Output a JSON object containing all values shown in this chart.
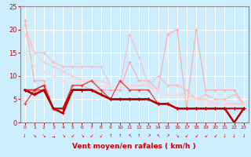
{
  "xlabel": "Vent moyen/en rafales ( km/h )",
  "xlim": [
    -0.5,
    23.5
  ],
  "ylim": [
    0,
    25
  ],
  "yticks": [
    0,
    5,
    10,
    15,
    20,
    25
  ],
  "xticks": [
    0,
    1,
    2,
    3,
    4,
    5,
    6,
    7,
    8,
    9,
    10,
    11,
    12,
    13,
    14,
    15,
    16,
    17,
    18,
    19,
    20,
    21,
    22,
    23
  ],
  "bg_color": "#cceeff",
  "grid_color": "#ffffff",
  "lines": [
    {
      "x": [
        0,
        1,
        2,
        3,
        4,
        5,
        6,
        7,
        8,
        9,
        10,
        11,
        12,
        13,
        14,
        15,
        16,
        17,
        18,
        19,
        20,
        21,
        22,
        23
      ],
      "y": [
        22,
        9,
        9,
        3,
        3,
        8,
        8,
        7,
        7,
        7,
        7,
        13,
        9,
        9,
        7,
        19,
        20,
        3,
        20,
        7,
        7,
        7,
        7,
        4
      ],
      "color": "#ffaaaa",
      "lw": 0.8,
      "marker": "+"
    },
    {
      "x": [
        0,
        1,
        2,
        3,
        4,
        5,
        6,
        7,
        8,
        9,
        10,
        11,
        12,
        13,
        14,
        15,
        16,
        17,
        18,
        19,
        20,
        21,
        22,
        23
      ],
      "y": [
        21,
        15,
        15,
        13,
        12,
        12,
        12,
        12,
        12,
        8,
        8,
        19,
        14,
        8,
        10,
        8,
        8,
        7,
        5,
        6,
        5,
        5,
        6,
        4
      ],
      "color": "#ffbbbb",
      "lw": 0.8,
      "marker": "+"
    },
    {
      "x": [
        0,
        1,
        2,
        3,
        4,
        5,
        6,
        7,
        8,
        9,
        10,
        11,
        12,
        13,
        14,
        15,
        16,
        17,
        18,
        19,
        20,
        21,
        22,
        23
      ],
      "y": [
        19,
        15,
        13,
        12,
        11,
        10,
        9,
        9,
        9,
        8,
        8,
        8,
        8,
        8,
        7,
        6,
        6,
        6,
        5,
        5,
        4,
        4,
        4,
        4
      ],
      "color": "#ffcccc",
      "lw": 1.0,
      "marker": "+"
    },
    {
      "x": [
        0,
        1,
        2,
        3,
        4,
        5,
        6,
        7,
        8,
        9,
        10,
        11,
        12,
        13,
        14,
        15,
        16,
        17,
        18,
        19,
        20,
        21,
        22,
        23
      ],
      "y": [
        15,
        12,
        11,
        10,
        9,
        9,
        9,
        9,
        8,
        8,
        8,
        8,
        7,
        7,
        7,
        6,
        6,
        5,
        5,
        4,
        4,
        4,
        3,
        4
      ],
      "color": "#ffdddd",
      "lw": 1.0,
      "marker": "+"
    },
    {
      "x": [
        0,
        1,
        2,
        3,
        4,
        5,
        6,
        7,
        8,
        9,
        10,
        11,
        12,
        13,
        14,
        15,
        16,
        17,
        18,
        19,
        20,
        21,
        22,
        23
      ],
      "y": [
        4,
        7,
        7,
        3,
        3,
        8,
        8,
        9,
        7,
        5,
        9,
        7,
        7,
        7,
        4,
        4,
        3,
        3,
        3,
        3,
        3,
        3,
        3,
        3
      ],
      "color": "#ee4444",
      "lw": 1.0,
      "marker": "+"
    },
    {
      "x": [
        0,
        1,
        2,
        3,
        4,
        5,
        6,
        7,
        8,
        9,
        10,
        11,
        12,
        13,
        14,
        15,
        16,
        17,
        18,
        19,
        20,
        21,
        22,
        23
      ],
      "y": [
        7,
        7,
        8,
        3,
        3,
        7,
        7,
        7,
        6,
        5,
        5,
        5,
        5,
        5,
        4,
        4,
        3,
        3,
        3,
        3,
        3,
        3,
        3,
        3
      ],
      "color": "#dd2222",
      "lw": 1.2,
      "marker": "+"
    },
    {
      "x": [
        0,
        1,
        2,
        3,
        4,
        5,
        6,
        7,
        8,
        9,
        10,
        11,
        12,
        13,
        14,
        15,
        16,
        17,
        18,
        19,
        20,
        21,
        22,
        23
      ],
      "y": [
        7,
        6,
        7,
        3,
        3,
        7,
        7,
        7,
        6,
        5,
        5,
        5,
        5,
        5,
        4,
        4,
        3,
        3,
        3,
        3,
        3,
        3,
        3,
        3
      ],
      "color": "#cc1111",
      "lw": 1.5,
      "marker": "+"
    },
    {
      "x": [
        0,
        1,
        2,
        3,
        4,
        5,
        6,
        7,
        8,
        9,
        10,
        11,
        12,
        13,
        14,
        15,
        16,
        17,
        18,
        19,
        20,
        21,
        22,
        23
      ],
      "y": [
        7,
        6,
        7,
        3,
        2,
        7,
        7,
        7,
        6,
        5,
        5,
        5,
        5,
        5,
        4,
        4,
        3,
        3,
        3,
        3,
        3,
        3,
        0,
        3
      ],
      "color": "#bb0000",
      "lw": 1.8,
      "marker": "+"
    }
  ],
  "wind_arrows": [
    "↓",
    "↘",
    "↘",
    "→",
    "↘",
    "↙",
    "↘",
    "↙",
    "↙",
    "↑",
    "↑",
    "↖",
    "↑",
    "↗",
    "↖",
    "↗",
    "↘",
    "↙",
    "↙",
    "↙",
    "↙",
    "↓",
    "↓",
    "↓"
  ],
  "title_color": "#cc0000",
  "xlabel_color": "#cc0000",
  "tick_color": "#cc0000",
  "axis_color": "#888888"
}
